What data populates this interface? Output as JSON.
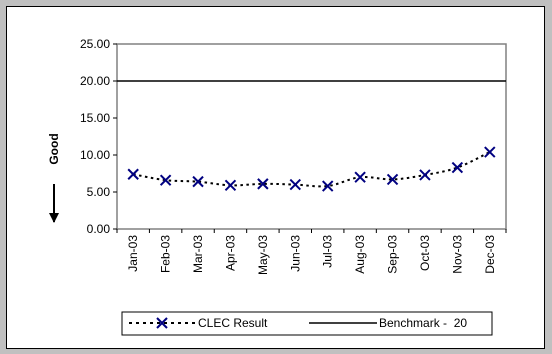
{
  "chart_data": {
    "type": "line",
    "title": "",
    "xlabel": "",
    "ylabel": "Good",
    "categories": [
      "Jan-03",
      "Feb-03",
      "Mar-03",
      "Apr-03",
      "May-03",
      "Jun-03",
      "Jul-03",
      "Aug-03",
      "Sep-03",
      "Oct-03",
      "Nov-03",
      "Dec-03"
    ],
    "y_ticks": [
      "0.00",
      "5.00",
      "10.00",
      "15.00",
      "20.00",
      "25.00"
    ],
    "ylim": [
      0,
      25
    ],
    "grid": false,
    "legend_position": "bottom",
    "series": [
      {
        "name": "CLEC Result",
        "style": "dotted-line-x-markers",
        "color": "#000080",
        "values": [
          7.4,
          6.6,
          6.4,
          5.9,
          6.1,
          6.0,
          5.8,
          7.0,
          6.7,
          7.3,
          8.3,
          10.4
        ]
      },
      {
        "name": "Benchmark -  20",
        "style": "solid-line",
        "color": "#000000",
        "values": [
          20,
          20,
          20,
          20,
          20,
          20,
          20,
          20,
          20,
          20,
          20,
          20
        ]
      }
    ]
  }
}
